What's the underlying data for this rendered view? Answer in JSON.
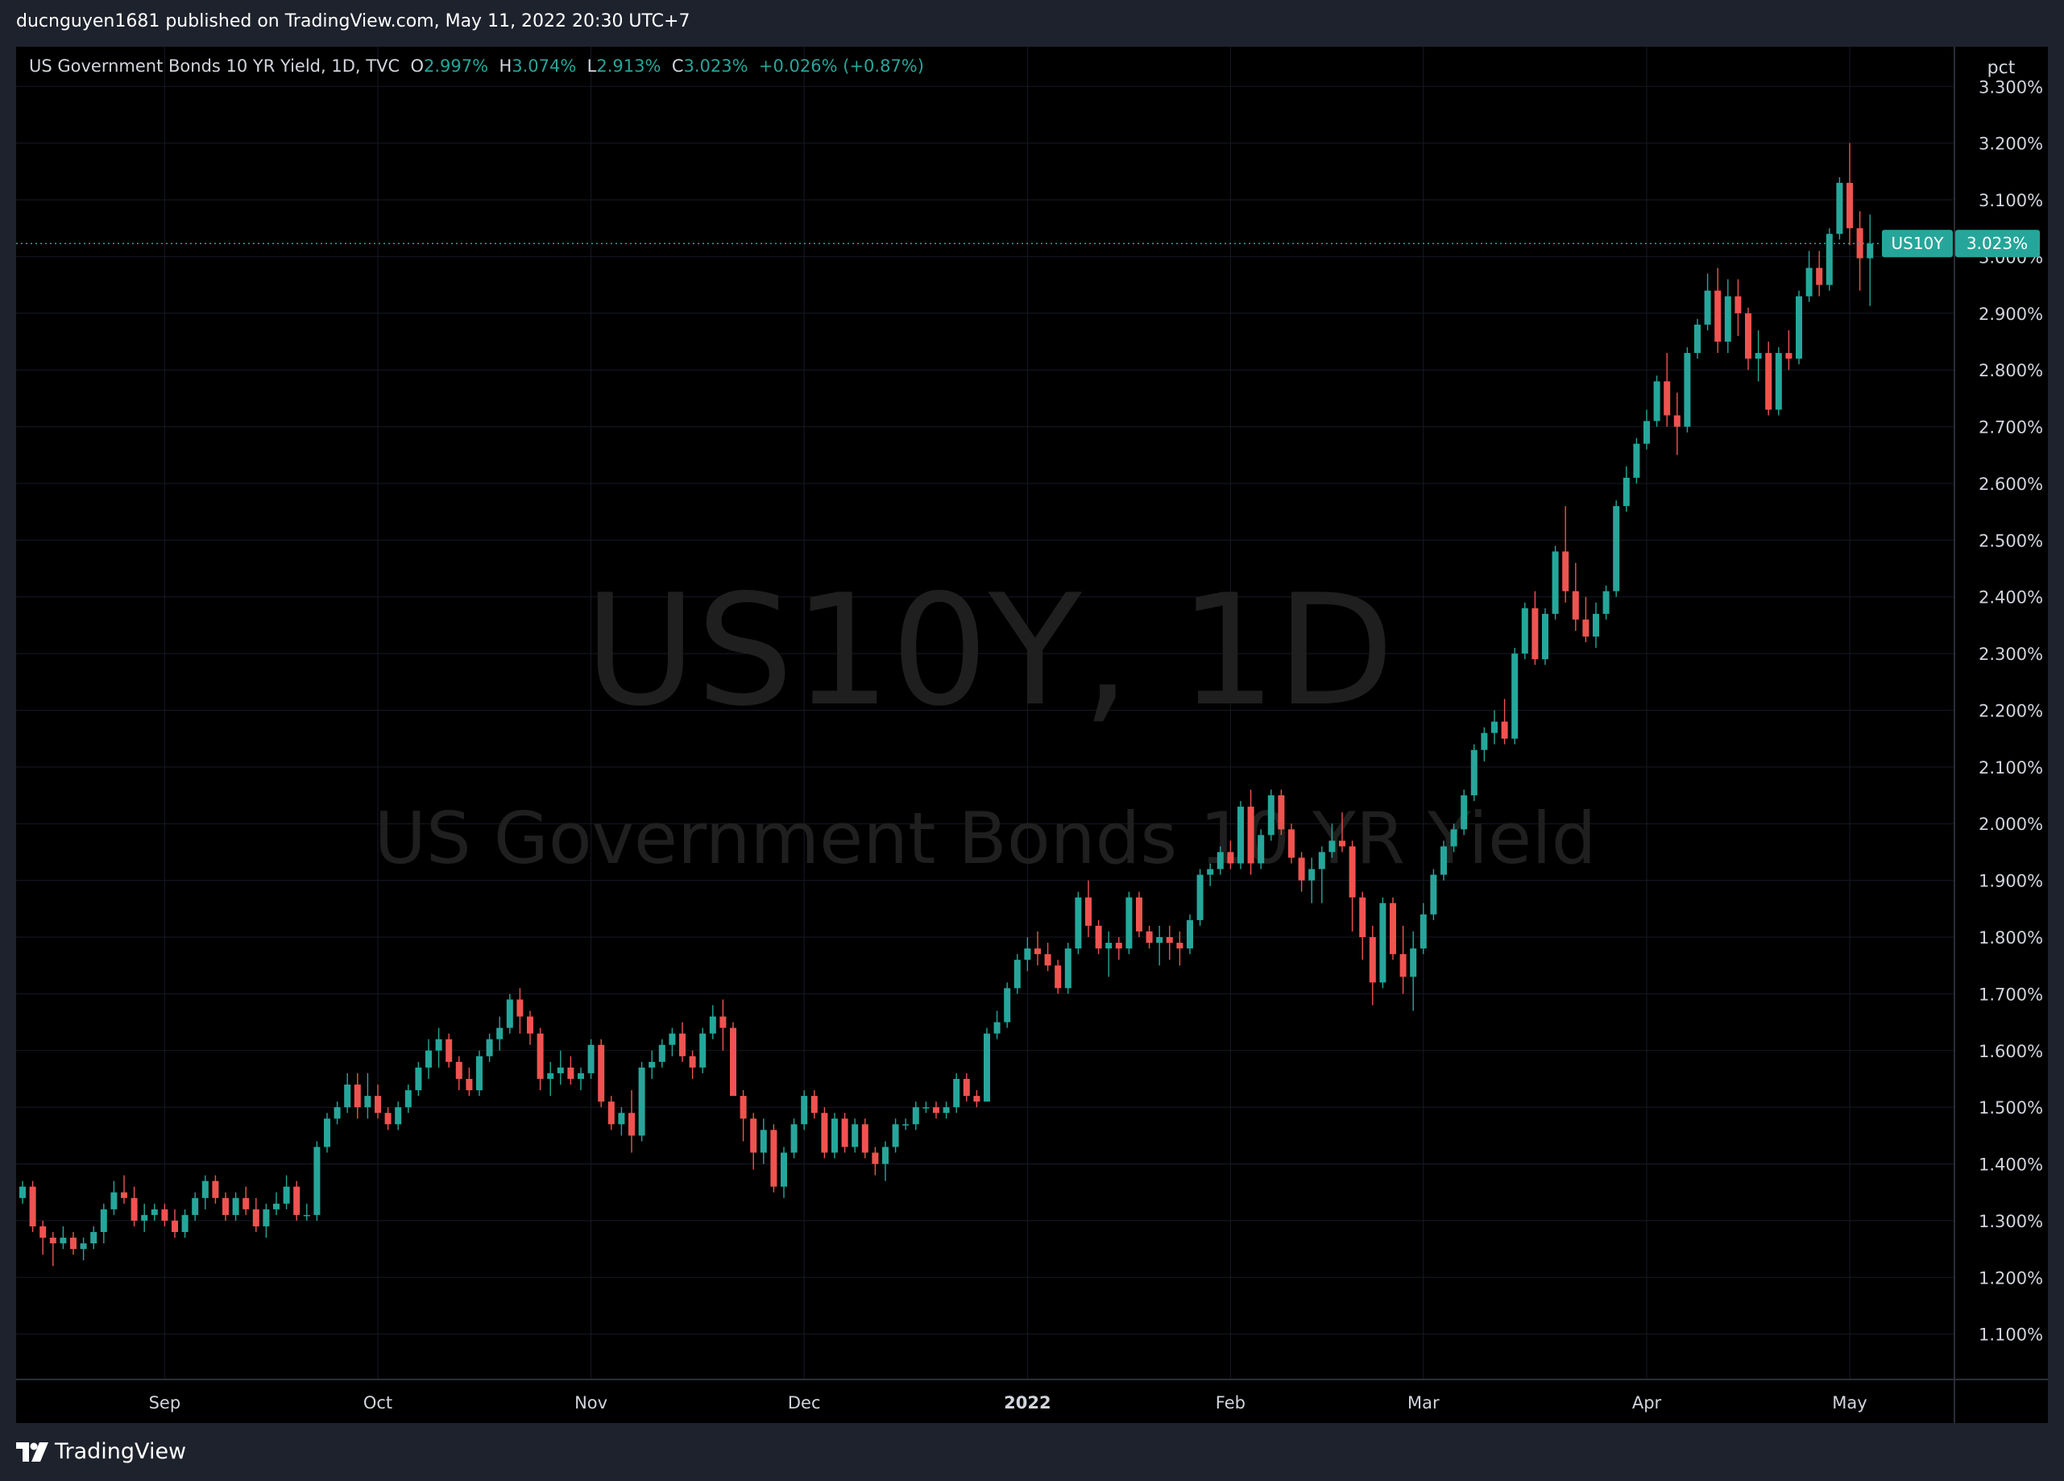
{
  "header": {
    "published_text": "ducnguyen1681 published on TradingView.com, May 11, 2022 20:30 UTC+7"
  },
  "legend": {
    "title": "US Government Bonds 10 YR Yield, 1D, TVC",
    "o_label": "O",
    "o_value": "2.997%",
    "h_label": "H",
    "h_value": "3.074%",
    "l_label": "L",
    "l_value": "2.913%",
    "c_label": "C",
    "c_value": "3.023%",
    "change": "+0.026% (+0.87%)"
  },
  "watermark": {
    "symbol": "US10Y, 1D",
    "name": "US Government Bonds 10 YR Yield"
  },
  "price_scale": {
    "unit_label": "pct",
    "last_symbol": "US10Y",
    "last_value": "3.023%"
  },
  "footer": {
    "brand": "TradingView"
  },
  "colors": {
    "up": "#26a69a",
    "down": "#ef5350",
    "background": "#000000",
    "frame": "#1e222d",
    "grid": "#161a25"
  },
  "chart_data": {
    "type": "candlestick",
    "title": "US Government Bonds 10 YR Yield, 1D, TVC",
    "ylabel": "pct",
    "ylim": [
      1.02,
      3.37
    ],
    "y_ticks": [
      1.1,
      1.2,
      1.3,
      1.4,
      1.5,
      1.6,
      1.7,
      1.8,
      1.9,
      2.0,
      2.1,
      2.2,
      2.3,
      2.4,
      2.5,
      2.6,
      2.7,
      2.8,
      2.9,
      3.0,
      3.1,
      3.2,
      3.3
    ],
    "y_tick_labels": [
      "1.100%",
      "1.200%",
      "1.300%",
      "1.400%",
      "1.500%",
      "1.600%",
      "1.700%",
      "1.800%",
      "1.900%",
      "2.000%",
      "2.100%",
      "2.200%",
      "2.300%",
      "2.400%",
      "2.500%",
      "2.600%",
      "2.700%",
      "2.800%",
      "2.900%",
      "3.000%",
      "3.100%",
      "3.200%",
      "3.300%"
    ],
    "x_ticks": [
      {
        "label": "Sep",
        "index": 14,
        "bold": false
      },
      {
        "label": "Oct",
        "index": 35,
        "bold": false
      },
      {
        "label": "Nov",
        "index": 56,
        "bold": false
      },
      {
        "label": "Dec",
        "index": 77,
        "bold": false
      },
      {
        "label": "2022",
        "index": 99,
        "bold": true
      },
      {
        "label": "Feb",
        "index": 119,
        "bold": false
      },
      {
        "label": "Mar",
        "index": 138,
        "bold": false
      },
      {
        "label": "Apr",
        "index": 160,
        "bold": false
      },
      {
        "label": "May",
        "index": 180,
        "bold": false
      }
    ],
    "grid": true,
    "last_price": 3.023,
    "ohlc": [
      [
        1.34,
        1.37,
        1.33,
        1.36
      ],
      [
        1.36,
        1.37,
        1.28,
        1.29
      ],
      [
        1.29,
        1.3,
        1.24,
        1.27
      ],
      [
        1.27,
        1.28,
        1.22,
        1.26
      ],
      [
        1.26,
        1.29,
        1.25,
        1.27
      ],
      [
        1.27,
        1.28,
        1.24,
        1.25
      ],
      [
        1.25,
        1.27,
        1.23,
        1.26
      ],
      [
        1.26,
        1.29,
        1.25,
        1.28
      ],
      [
        1.28,
        1.33,
        1.26,
        1.32
      ],
      [
        1.32,
        1.37,
        1.31,
        1.35
      ],
      [
        1.35,
        1.38,
        1.33,
        1.34
      ],
      [
        1.34,
        1.36,
        1.29,
        1.3
      ],
      [
        1.3,
        1.33,
        1.28,
        1.31
      ],
      [
        1.31,
        1.33,
        1.3,
        1.32
      ],
      [
        1.32,
        1.33,
        1.29,
        1.3
      ],
      [
        1.3,
        1.32,
        1.27,
        1.28
      ],
      [
        1.28,
        1.32,
        1.27,
        1.31
      ],
      [
        1.31,
        1.35,
        1.3,
        1.34
      ],
      [
        1.34,
        1.38,
        1.32,
        1.37
      ],
      [
        1.37,
        1.38,
        1.33,
        1.34
      ],
      [
        1.34,
        1.35,
        1.3,
        1.31
      ],
      [
        1.31,
        1.35,
        1.3,
        1.34
      ],
      [
        1.34,
        1.36,
        1.31,
        1.32
      ],
      [
        1.32,
        1.34,
        1.28,
        1.29
      ],
      [
        1.29,
        1.33,
        1.27,
        1.32
      ],
      [
        1.32,
        1.35,
        1.31,
        1.33
      ],
      [
        1.33,
        1.38,
        1.32,
        1.36
      ],
      [
        1.36,
        1.37,
        1.3,
        1.31
      ],
      [
        1.31,
        1.33,
        1.3,
        1.31
      ],
      [
        1.31,
        1.44,
        1.3,
        1.43
      ],
      [
        1.43,
        1.49,
        1.42,
        1.48
      ],
      [
        1.48,
        1.51,
        1.47,
        1.5
      ],
      [
        1.5,
        1.56,
        1.49,
        1.54
      ],
      [
        1.54,
        1.56,
        1.48,
        1.5
      ],
      [
        1.5,
        1.56,
        1.48,
        1.52
      ],
      [
        1.52,
        1.54,
        1.48,
        1.49
      ],
      [
        1.49,
        1.5,
        1.46,
        1.47
      ],
      [
        1.47,
        1.51,
        1.46,
        1.5
      ],
      [
        1.5,
        1.54,
        1.49,
        1.53
      ],
      [
        1.53,
        1.58,
        1.52,
        1.57
      ],
      [
        1.57,
        1.62,
        1.55,
        1.6
      ],
      [
        1.6,
        1.64,
        1.57,
        1.62
      ],
      [
        1.62,
        1.63,
        1.57,
        1.58
      ],
      [
        1.58,
        1.59,
        1.53,
        1.55
      ],
      [
        1.55,
        1.57,
        1.52,
        1.53
      ],
      [
        1.53,
        1.6,
        1.52,
        1.59
      ],
      [
        1.59,
        1.63,
        1.58,
        1.62
      ],
      [
        1.62,
        1.66,
        1.6,
        1.64
      ],
      [
        1.64,
        1.7,
        1.63,
        1.69
      ],
      [
        1.69,
        1.71,
        1.63,
        1.66
      ],
      [
        1.66,
        1.67,
        1.61,
        1.63
      ],
      [
        1.63,
        1.64,
        1.53,
        1.55
      ],
      [
        1.55,
        1.58,
        1.52,
        1.56
      ],
      [
        1.56,
        1.6,
        1.54,
        1.57
      ],
      [
        1.57,
        1.59,
        1.54,
        1.55
      ],
      [
        1.55,
        1.57,
        1.53,
        1.56
      ],
      [
        1.56,
        1.62,
        1.55,
        1.61
      ],
      [
        1.61,
        1.62,
        1.5,
        1.51
      ],
      [
        1.51,
        1.52,
        1.46,
        1.47
      ],
      [
        1.47,
        1.5,
        1.45,
        1.49
      ],
      [
        1.49,
        1.53,
        1.42,
        1.45
      ],
      [
        1.45,
        1.58,
        1.44,
        1.57
      ],
      [
        1.57,
        1.6,
        1.55,
        1.58
      ],
      [
        1.58,
        1.62,
        1.57,
        1.61
      ],
      [
        1.61,
        1.64,
        1.59,
        1.63
      ],
      [
        1.63,
        1.65,
        1.58,
        1.59
      ],
      [
        1.59,
        1.6,
        1.55,
        1.57
      ],
      [
        1.57,
        1.64,
        1.56,
        1.63
      ],
      [
        1.63,
        1.68,
        1.62,
        1.66
      ],
      [
        1.66,
        1.69,
        1.6,
        1.64
      ],
      [
        1.64,
        1.65,
        1.52,
        1.52
      ],
      [
        1.52,
        1.53,
        1.44,
        1.48
      ],
      [
        1.48,
        1.49,
        1.39,
        1.42
      ],
      [
        1.42,
        1.48,
        1.4,
        1.46
      ],
      [
        1.46,
        1.47,
        1.35,
        1.36
      ],
      [
        1.36,
        1.43,
        1.34,
        1.42
      ],
      [
        1.42,
        1.48,
        1.41,
        1.47
      ],
      [
        1.47,
        1.53,
        1.46,
        1.52
      ],
      [
        1.52,
        1.53,
        1.48,
        1.49
      ],
      [
        1.49,
        1.5,
        1.41,
        1.42
      ],
      [
        1.42,
        1.49,
        1.41,
        1.48
      ],
      [
        1.48,
        1.49,
        1.42,
        1.43
      ],
      [
        1.43,
        1.48,
        1.42,
        1.47
      ],
      [
        1.47,
        1.48,
        1.41,
        1.42
      ],
      [
        1.42,
        1.43,
        1.38,
        1.4
      ],
      [
        1.4,
        1.44,
        1.37,
        1.43
      ],
      [
        1.43,
        1.48,
        1.42,
        1.47
      ],
      [
        1.47,
        1.48,
        1.46,
        1.47
      ],
      [
        1.47,
        1.51,
        1.46,
        1.5
      ],
      [
        1.5,
        1.51,
        1.49,
        1.5
      ],
      [
        1.5,
        1.51,
        1.48,
        1.49
      ],
      [
        1.49,
        1.51,
        1.48,
        1.5
      ],
      [
        1.5,
        1.56,
        1.49,
        1.55
      ],
      [
        1.55,
        1.56,
        1.51,
        1.52
      ],
      [
        1.52,
        1.53,
        1.5,
        1.51
      ],
      [
        1.51,
        1.64,
        1.51,
        1.63
      ],
      [
        1.63,
        1.67,
        1.62,
        1.65
      ],
      [
        1.65,
        1.72,
        1.64,
        1.71
      ],
      [
        1.71,
        1.77,
        1.7,
        1.76
      ],
      [
        1.76,
        1.8,
        1.74,
        1.78
      ],
      [
        1.78,
        1.81,
        1.75,
        1.77
      ],
      [
        1.77,
        1.79,
        1.74,
        1.75
      ],
      [
        1.75,
        1.76,
        1.7,
        1.71
      ],
      [
        1.71,
        1.79,
        1.7,
        1.78
      ],
      [
        1.78,
        1.88,
        1.77,
        1.87
      ],
      [
        1.87,
        1.9,
        1.8,
        1.82
      ],
      [
        1.82,
        1.83,
        1.77,
        1.78
      ],
      [
        1.78,
        1.81,
        1.73,
        1.79
      ],
      [
        1.79,
        1.8,
        1.76,
        1.78
      ],
      [
        1.78,
        1.88,
        1.77,
        1.87
      ],
      [
        1.87,
        1.88,
        1.8,
        1.81
      ],
      [
        1.81,
        1.82,
        1.78,
        1.79
      ],
      [
        1.79,
        1.82,
        1.75,
        1.8
      ],
      [
        1.8,
        1.82,
        1.76,
        1.79
      ],
      [
        1.79,
        1.81,
        1.75,
        1.78
      ],
      [
        1.78,
        1.84,
        1.77,
        1.83
      ],
      [
        1.83,
        1.92,
        1.82,
        1.91
      ],
      [
        1.91,
        1.93,
        1.89,
        1.92
      ],
      [
        1.92,
        1.96,
        1.91,
        1.95
      ],
      [
        1.95,
        1.97,
        1.92,
        1.93
      ],
      [
        1.93,
        2.04,
        1.92,
        2.03
      ],
      [
        2.03,
        2.06,
        1.91,
        1.93
      ],
      [
        1.93,
        1.99,
        1.92,
        1.98
      ],
      [
        1.98,
        2.06,
        1.97,
        2.05
      ],
      [
        2.05,
        2.06,
        1.98,
        1.99
      ],
      [
        1.99,
        2.0,
        1.93,
        1.94
      ],
      [
        1.94,
        1.95,
        1.88,
        1.9
      ],
      [
        1.9,
        1.94,
        1.86,
        1.92
      ],
      [
        1.92,
        1.96,
        1.86,
        1.95
      ],
      [
        1.95,
        2.0,
        1.94,
        1.97
      ],
      [
        1.97,
        2.02,
        1.95,
        1.96
      ],
      [
        1.96,
        1.97,
        1.81,
        1.87
      ],
      [
        1.87,
        1.88,
        1.76,
        1.8
      ],
      [
        1.8,
        1.82,
        1.68,
        1.72
      ],
      [
        1.72,
        1.87,
        1.71,
        1.86
      ],
      [
        1.86,
        1.87,
        1.76,
        1.77
      ],
      [
        1.77,
        1.82,
        1.7,
        1.73
      ],
      [
        1.73,
        1.81,
        1.67,
        1.78
      ],
      [
        1.78,
        1.86,
        1.77,
        1.84
      ],
      [
        1.84,
        1.92,
        1.83,
        1.91
      ],
      [
        1.91,
        1.97,
        1.9,
        1.96
      ],
      [
        1.96,
        2.0,
        1.95,
        1.99
      ],
      [
        1.99,
        2.06,
        1.98,
        2.05
      ],
      [
        2.05,
        2.14,
        2.04,
        2.13
      ],
      [
        2.13,
        2.17,
        2.11,
        2.16
      ],
      [
        2.16,
        2.2,
        2.14,
        2.18
      ],
      [
        2.18,
        2.22,
        2.14,
        2.15
      ],
      [
        2.15,
        2.31,
        2.14,
        2.3
      ],
      [
        2.3,
        2.39,
        2.29,
        2.38
      ],
      [
        2.38,
        2.41,
        2.28,
        2.29
      ],
      [
        2.29,
        2.38,
        2.28,
        2.37
      ],
      [
        2.37,
        2.49,
        2.36,
        2.48
      ],
      [
        2.48,
        2.56,
        2.39,
        2.41
      ],
      [
        2.41,
        2.46,
        2.34,
        2.36
      ],
      [
        2.36,
        2.4,
        2.32,
        2.33
      ],
      [
        2.33,
        2.39,
        2.31,
        2.37
      ],
      [
        2.37,
        2.42,
        2.36,
        2.41
      ],
      [
        2.41,
        2.57,
        2.4,
        2.56
      ],
      [
        2.56,
        2.63,
        2.55,
        2.61
      ],
      [
        2.61,
        2.68,
        2.6,
        2.67
      ],
      [
        2.67,
        2.73,
        2.66,
        2.71
      ],
      [
        2.71,
        2.79,
        2.7,
        2.78
      ],
      [
        2.78,
        2.83,
        2.7,
        2.72
      ],
      [
        2.72,
        2.76,
        2.65,
        2.7
      ],
      [
        2.7,
        2.84,
        2.69,
        2.83
      ],
      [
        2.83,
        2.89,
        2.82,
        2.88
      ],
      [
        2.88,
        2.97,
        2.87,
        2.94
      ],
      [
        2.94,
        2.98,
        2.83,
        2.85
      ],
      [
        2.85,
        2.96,
        2.83,
        2.93
      ],
      [
        2.93,
        2.96,
        2.86,
        2.9
      ],
      [
        2.9,
        2.91,
        2.8,
        2.82
      ],
      [
        2.82,
        2.87,
        2.78,
        2.83
      ],
      [
        2.83,
        2.85,
        2.72,
        2.73
      ],
      [
        2.73,
        2.84,
        2.72,
        2.83
      ],
      [
        2.83,
        2.87,
        2.8,
        2.82
      ],
      [
        2.82,
        2.94,
        2.81,
        2.93
      ],
      [
        2.93,
        3.01,
        2.92,
        2.98
      ],
      [
        2.98,
        3.01,
        2.93,
        2.95
      ],
      [
        2.95,
        3.05,
        2.94,
        3.04
      ],
      [
        3.04,
        3.14,
        3.03,
        3.13
      ],
      [
        3.13,
        3.2,
        3.02,
        3.05
      ],
      [
        3.05,
        3.08,
        2.94,
        2.997
      ],
      [
        2.997,
        3.074,
        2.913,
        3.023
      ]
    ]
  }
}
